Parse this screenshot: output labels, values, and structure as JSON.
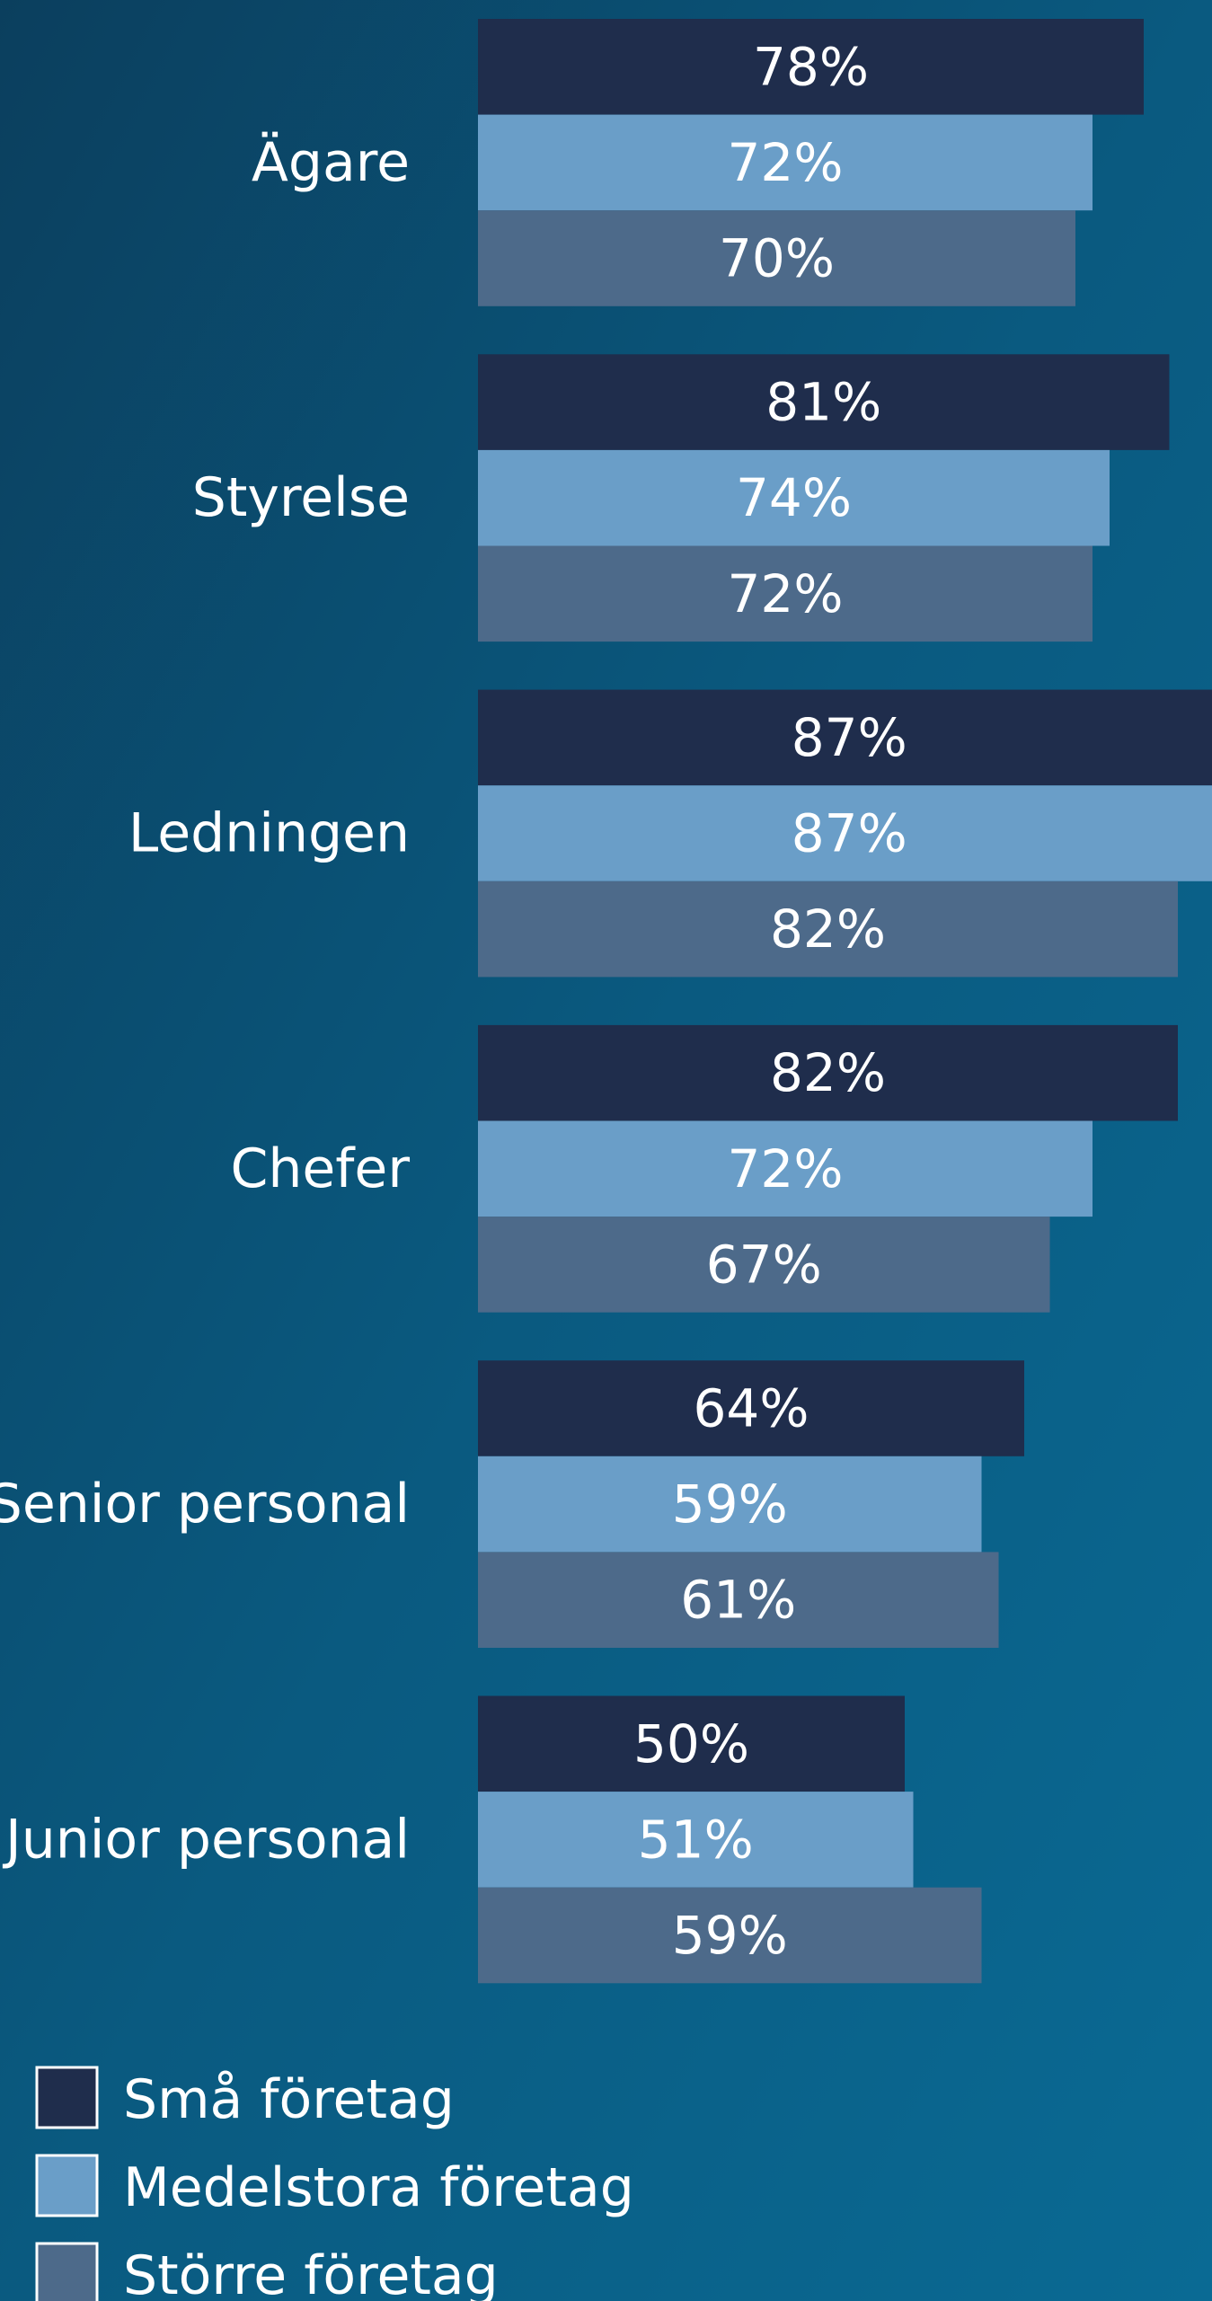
{
  "chart_data": {
    "type": "bar",
    "orientation": "horizontal",
    "categories": [
      "Ägare",
      "Styrelse",
      "Ledningen",
      "Chefer",
      "Senior personal",
      "Junior personal"
    ],
    "series": [
      {
        "name": "Små företag",
        "color": "#1f2d4c",
        "values": [
          78,
          81,
          87,
          82,
          64,
          50
        ],
        "value_labels": [
          "78%",
          "81%",
          "87%",
          "82%",
          "64%",
          "50%"
        ]
      },
      {
        "name": "Medelstora företag",
        "color": "#6a9ec8",
        "values": [
          72,
          74,
          87,
          72,
          59,
          51
        ],
        "value_labels": [
          "72%",
          "74%",
          "87%",
          "72%",
          "59%",
          "51%"
        ]
      },
      {
        "name": "Större företag",
        "color": "#4d6a8a",
        "values": [
          70,
          72,
          82,
          67,
          61,
          59
        ],
        "value_labels": [
          "70%",
          "72%",
          "82%",
          "67%",
          "61%",
          "59%"
        ]
      }
    ],
    "xlim": [
      0,
      86
    ],
    "legend": "bottom-left"
  }
}
